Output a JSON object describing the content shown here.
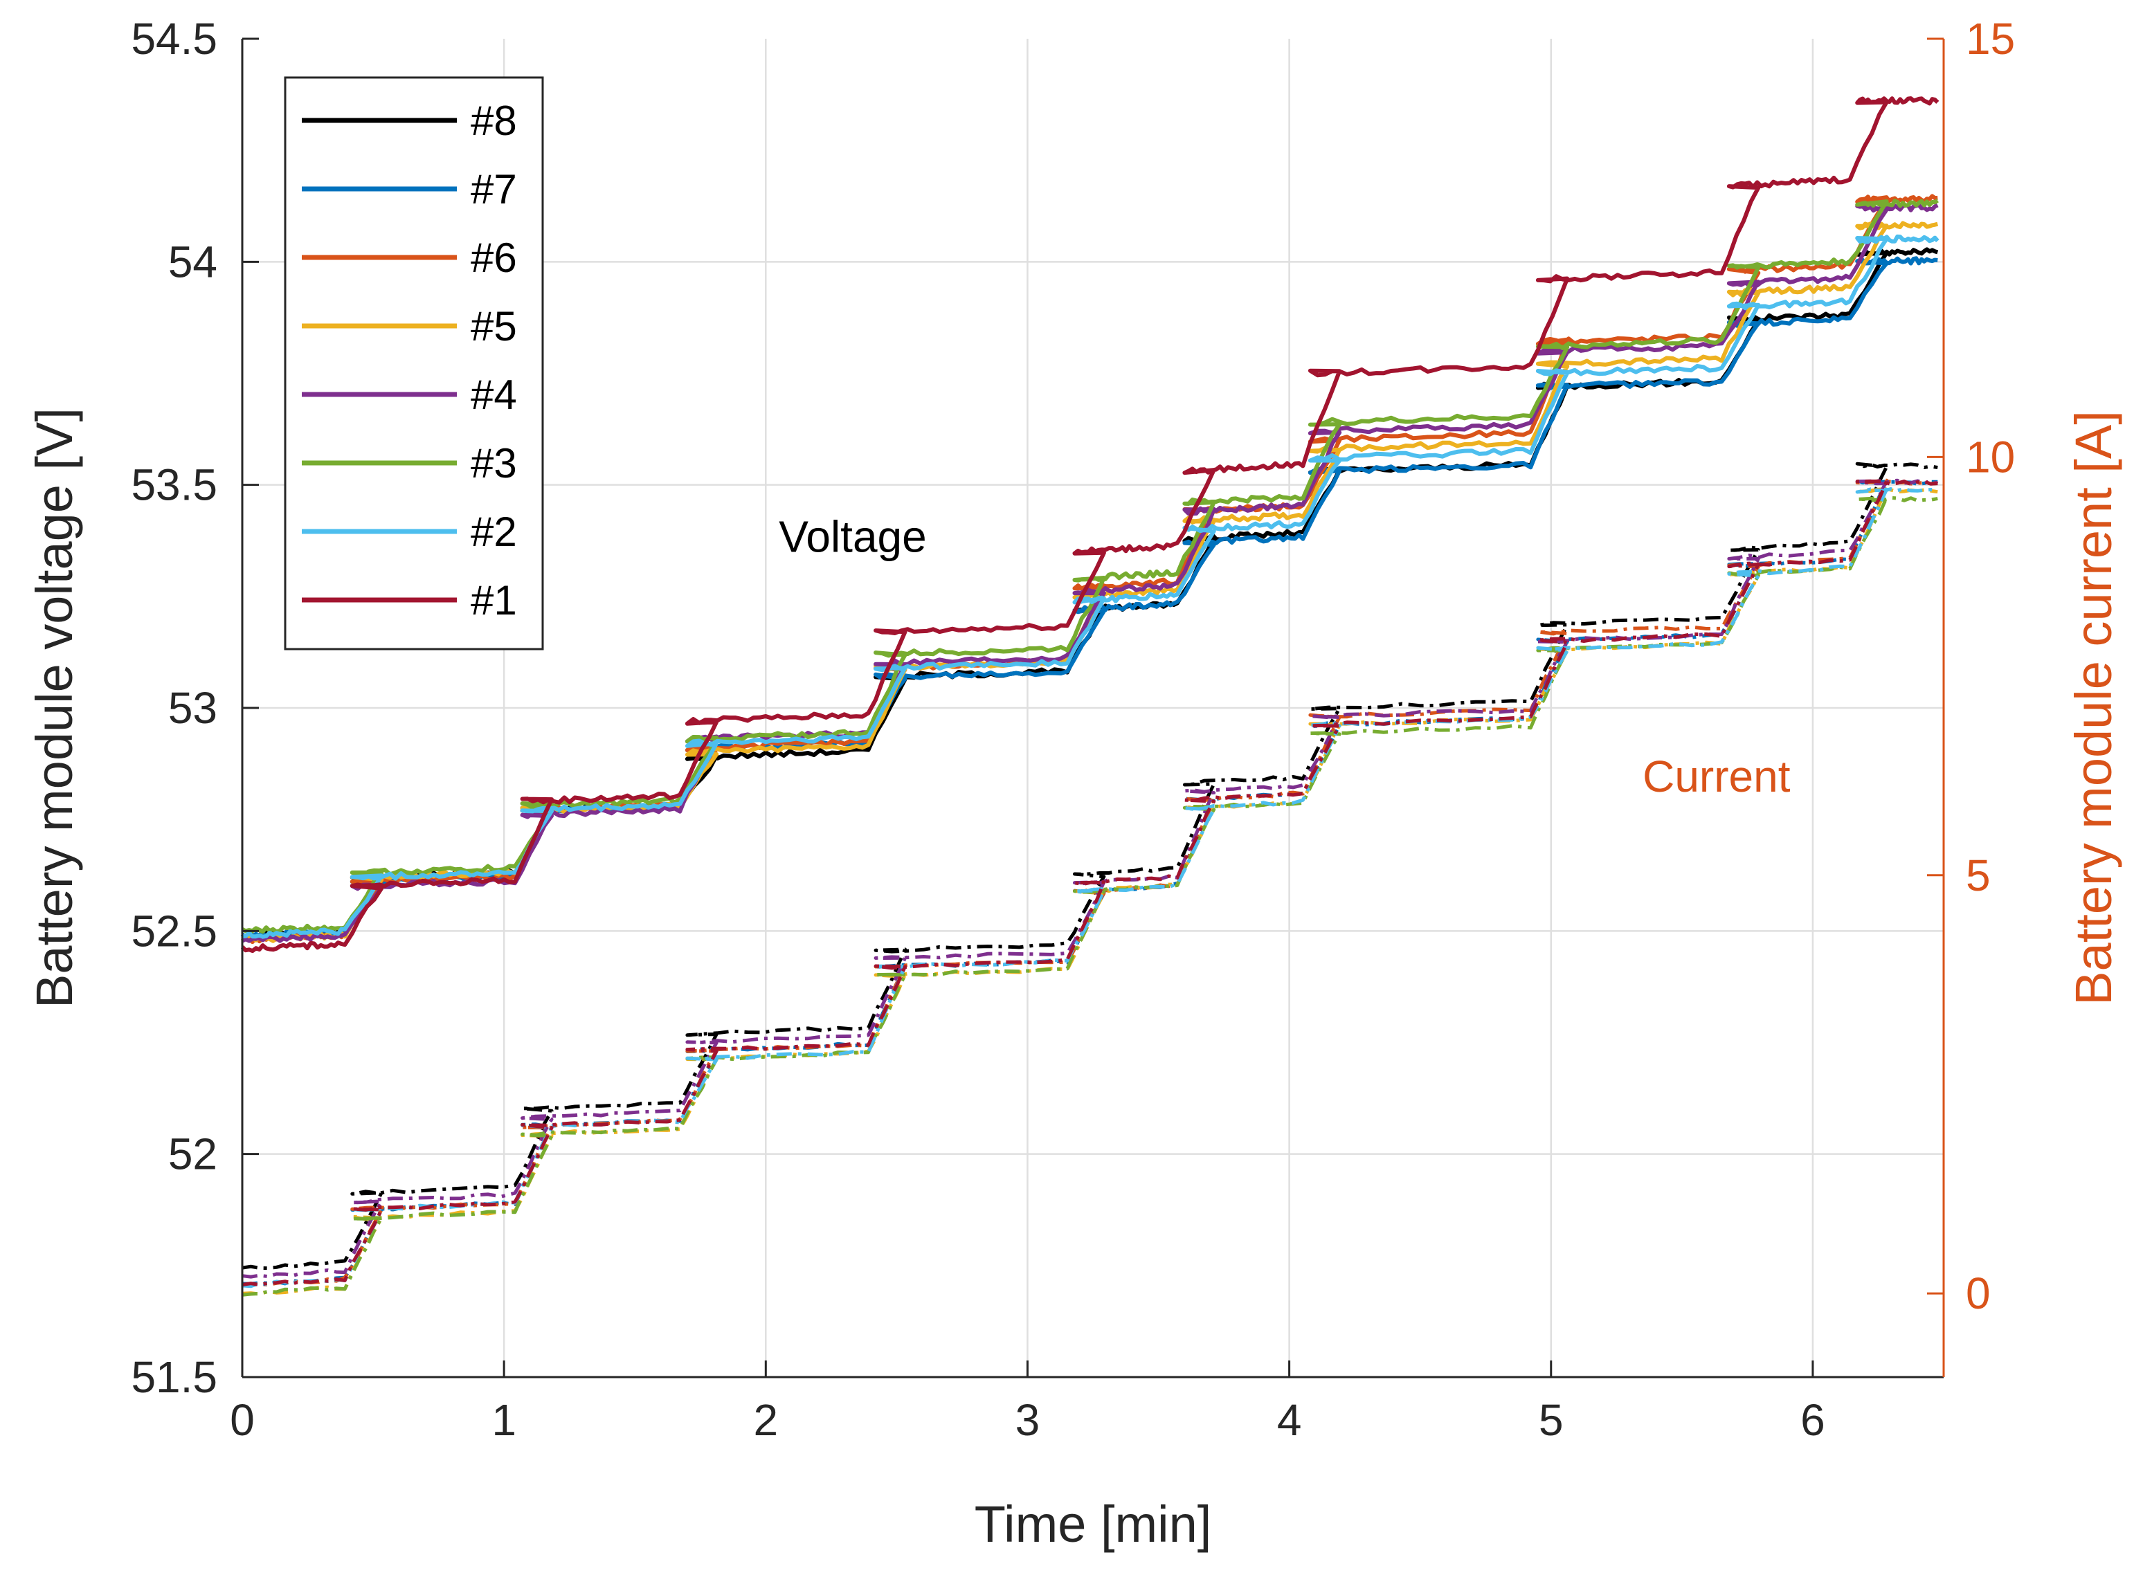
{
  "chart_data": {
    "type": "line",
    "xlabel": "Time [min]",
    "ylabel_left": "Battery module voltage [V]",
    "ylabel_right": "Battery module current [A]",
    "xlim": [
      0,
      6.5
    ],
    "ylim_left": [
      51.5,
      54.5
    ],
    "ylim_right": [
      -1,
      15
    ],
    "x_ticks": [
      "0",
      "1",
      "2",
      "3",
      "4",
      "5",
      "6"
    ],
    "y_left_ticks": [
      "51.5",
      "52",
      "52.5",
      "53",
      "53.5",
      "54",
      "54.5"
    ],
    "y_right_ticks": [
      "0",
      "5",
      "10",
      "15"
    ],
    "grid": true,
    "legend_position": "top-left",
    "right_axis_color": "#d95319",
    "annotations": [
      {
        "text": "Voltage",
        "x": 2.05,
        "y": 53.35,
        "axis": "left",
        "color": "#000000"
      },
      {
        "text": "Current",
        "x": 5.35,
        "y": 6.0,
        "axis": "right",
        "color": "#d95319"
      }
    ],
    "step_times": [
      0.0,
      0.42,
      1.07,
      1.7,
      2.42,
      3.18,
      3.6,
      4.08,
      4.95,
      5.68,
      6.17,
      6.5
    ],
    "voltage_series": [
      {
        "name": "#8",
        "color": "#000000",
        "values": [
          52.49,
          52.62,
          52.77,
          52.89,
          53.07,
          53.22,
          53.38,
          53.53,
          53.72,
          53.87,
          54.02,
          54.05
        ]
      },
      {
        "name": "#7",
        "color": "#0072bd",
        "values": [
          52.49,
          52.61,
          52.77,
          52.91,
          53.07,
          53.22,
          53.37,
          53.53,
          53.72,
          53.86,
          54.0,
          54.04
        ]
      },
      {
        "name": "#6",
        "color": "#d95319",
        "values": [
          52.48,
          52.61,
          52.77,
          52.91,
          53.09,
          53.27,
          53.44,
          53.6,
          53.82,
          53.98,
          54.14,
          54.16
        ]
      },
      {
        "name": "#5",
        "color": "#edb120",
        "values": [
          52.48,
          52.62,
          52.77,
          52.9,
          53.09,
          53.25,
          53.42,
          53.58,
          53.77,
          53.93,
          54.08,
          54.1
        ]
      },
      {
        "name": "#4",
        "color": "#7e2f8e",
        "values": [
          52.48,
          52.6,
          52.76,
          52.93,
          53.1,
          53.26,
          53.44,
          53.62,
          53.8,
          53.95,
          54.12,
          54.15
        ]
      },
      {
        "name": "#3",
        "color": "#77ac30",
        "values": [
          52.5,
          52.63,
          52.78,
          52.93,
          53.12,
          53.29,
          53.46,
          53.64,
          53.81,
          53.99,
          54.13,
          54.15
        ]
      },
      {
        "name": "#2",
        "color": "#4dbeee",
        "values": [
          52.49,
          52.62,
          52.77,
          52.92,
          53.09,
          53.24,
          53.4,
          53.56,
          53.75,
          53.9,
          54.05,
          54.07
        ]
      },
      {
        "name": "#1",
        "color": "#a2142f",
        "values": [
          52.46,
          52.6,
          52.79,
          52.97,
          53.17,
          53.35,
          53.53,
          53.75,
          53.96,
          54.17,
          54.36,
          54.37
        ]
      }
    ],
    "current_series": [
      {
        "name": "#8",
        "color": "#000000",
        "values": [
          0.3,
          1.2,
          2.2,
          3.1,
          4.1,
          5.0,
          6.1,
          7.0,
          8.0,
          8.9,
          9.9,
          9.8
        ]
      },
      {
        "name": "#7",
        "color": "#0072bd",
        "values": [
          0.1,
          1.0,
          2.0,
          2.9,
          3.9,
          4.8,
          5.9,
          6.8,
          7.8,
          8.7,
          9.7,
          9.6
        ]
      },
      {
        "name": "#6",
        "color": "#d95319",
        "values": [
          0.1,
          1.0,
          2.0,
          2.9,
          3.9,
          4.8,
          5.9,
          6.9,
          7.9,
          8.7,
          9.7,
          9.6
        ]
      },
      {
        "name": "#5",
        "color": "#edb120",
        "values": [
          0.0,
          0.9,
          1.9,
          2.8,
          3.8,
          4.8,
          5.8,
          6.8,
          7.7,
          8.6,
          9.6,
          9.5
        ]
      },
      {
        "name": "#4",
        "color": "#7e2f8e",
        "values": [
          0.2,
          1.1,
          2.1,
          3.0,
          4.0,
          4.9,
          6.0,
          6.9,
          7.8,
          8.8,
          9.7,
          9.7
        ]
      },
      {
        "name": "#3",
        "color": "#77ac30",
        "values": [
          0.0,
          0.9,
          1.9,
          2.8,
          3.8,
          4.8,
          5.8,
          6.7,
          7.7,
          8.6,
          9.5,
          9.4
        ]
      },
      {
        "name": "#2",
        "color": "#4dbeee",
        "values": [
          0.1,
          1.0,
          2.0,
          2.8,
          3.9,
          4.8,
          5.8,
          6.8,
          7.7,
          8.6,
          9.6,
          9.6
        ]
      },
      {
        "name": "#1",
        "color": "#a2142f",
        "values": [
          0.1,
          1.0,
          2.0,
          2.9,
          3.9,
          4.9,
          5.9,
          6.8,
          7.8,
          8.7,
          9.7,
          9.6
        ]
      }
    ]
  }
}
